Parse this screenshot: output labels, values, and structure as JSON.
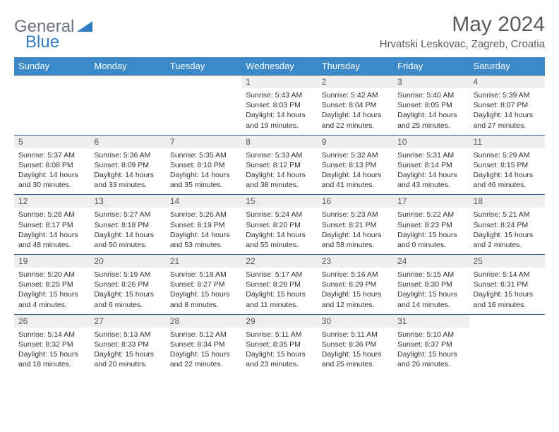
{
  "brand": {
    "part1": "General",
    "part2": "Blue"
  },
  "title": "May 2024",
  "location": "Hrvatski Leskovac, Zagreb, Croatia",
  "colors": {
    "header_bg": "#3b89c9",
    "daynum_bg": "#eceef0",
    "border": "#2f5d8a",
    "brand_grey": "#6b7280",
    "brand_blue": "#2f7cc4",
    "text": "#333333",
    "title_grey": "#595959"
  },
  "weekdays": [
    "Sunday",
    "Monday",
    "Tuesday",
    "Wednesday",
    "Thursday",
    "Friday",
    "Saturday"
  ],
  "weeks": [
    [
      null,
      null,
      null,
      {
        "n": "1",
        "sr": "5:43 AM",
        "ss": "8:03 PM",
        "dl": "14 hours and 19 minutes."
      },
      {
        "n": "2",
        "sr": "5:42 AM",
        "ss": "8:04 PM",
        "dl": "14 hours and 22 minutes."
      },
      {
        "n": "3",
        "sr": "5:40 AM",
        "ss": "8:05 PM",
        "dl": "14 hours and 25 minutes."
      },
      {
        "n": "4",
        "sr": "5:39 AM",
        "ss": "8:07 PM",
        "dl": "14 hours and 27 minutes."
      }
    ],
    [
      {
        "n": "5",
        "sr": "5:37 AM",
        "ss": "8:08 PM",
        "dl": "14 hours and 30 minutes."
      },
      {
        "n": "6",
        "sr": "5:36 AM",
        "ss": "8:09 PM",
        "dl": "14 hours and 33 minutes."
      },
      {
        "n": "7",
        "sr": "5:35 AM",
        "ss": "8:10 PM",
        "dl": "14 hours and 35 minutes."
      },
      {
        "n": "8",
        "sr": "5:33 AM",
        "ss": "8:12 PM",
        "dl": "14 hours and 38 minutes."
      },
      {
        "n": "9",
        "sr": "5:32 AM",
        "ss": "8:13 PM",
        "dl": "14 hours and 41 minutes."
      },
      {
        "n": "10",
        "sr": "5:31 AM",
        "ss": "8:14 PM",
        "dl": "14 hours and 43 minutes."
      },
      {
        "n": "11",
        "sr": "5:29 AM",
        "ss": "8:15 PM",
        "dl": "14 hours and 46 minutes."
      }
    ],
    [
      {
        "n": "12",
        "sr": "5:28 AM",
        "ss": "8:17 PM",
        "dl": "14 hours and 48 minutes."
      },
      {
        "n": "13",
        "sr": "5:27 AM",
        "ss": "8:18 PM",
        "dl": "14 hours and 50 minutes."
      },
      {
        "n": "14",
        "sr": "5:26 AM",
        "ss": "8:19 PM",
        "dl": "14 hours and 53 minutes."
      },
      {
        "n": "15",
        "sr": "5:24 AM",
        "ss": "8:20 PM",
        "dl": "14 hours and 55 minutes."
      },
      {
        "n": "16",
        "sr": "5:23 AM",
        "ss": "8:21 PM",
        "dl": "14 hours and 58 minutes."
      },
      {
        "n": "17",
        "sr": "5:22 AM",
        "ss": "8:23 PM",
        "dl": "15 hours and 0 minutes."
      },
      {
        "n": "18",
        "sr": "5:21 AM",
        "ss": "8:24 PM",
        "dl": "15 hours and 2 minutes."
      }
    ],
    [
      {
        "n": "19",
        "sr": "5:20 AM",
        "ss": "8:25 PM",
        "dl": "15 hours and 4 minutes."
      },
      {
        "n": "20",
        "sr": "5:19 AM",
        "ss": "8:26 PM",
        "dl": "15 hours and 6 minutes."
      },
      {
        "n": "21",
        "sr": "5:18 AM",
        "ss": "8:27 PM",
        "dl": "15 hours and 8 minutes."
      },
      {
        "n": "22",
        "sr": "5:17 AM",
        "ss": "8:28 PM",
        "dl": "15 hours and 11 minutes."
      },
      {
        "n": "23",
        "sr": "5:16 AM",
        "ss": "8:29 PM",
        "dl": "15 hours and 12 minutes."
      },
      {
        "n": "24",
        "sr": "5:15 AM",
        "ss": "8:30 PM",
        "dl": "15 hours and 14 minutes."
      },
      {
        "n": "25",
        "sr": "5:14 AM",
        "ss": "8:31 PM",
        "dl": "15 hours and 16 minutes."
      }
    ],
    [
      {
        "n": "26",
        "sr": "5:14 AM",
        "ss": "8:32 PM",
        "dl": "15 hours and 18 minutes."
      },
      {
        "n": "27",
        "sr": "5:13 AM",
        "ss": "8:33 PM",
        "dl": "15 hours and 20 minutes."
      },
      {
        "n": "28",
        "sr": "5:12 AM",
        "ss": "8:34 PM",
        "dl": "15 hours and 22 minutes."
      },
      {
        "n": "29",
        "sr": "5:11 AM",
        "ss": "8:35 PM",
        "dl": "15 hours and 23 minutes."
      },
      {
        "n": "30",
        "sr": "5:11 AM",
        "ss": "8:36 PM",
        "dl": "15 hours and 25 minutes."
      },
      {
        "n": "31",
        "sr": "5:10 AM",
        "ss": "8:37 PM",
        "dl": "15 hours and 26 minutes."
      },
      null
    ]
  ],
  "labels": {
    "sunrise": "Sunrise: ",
    "sunset": "Sunset: ",
    "daylight": "Daylight: "
  }
}
